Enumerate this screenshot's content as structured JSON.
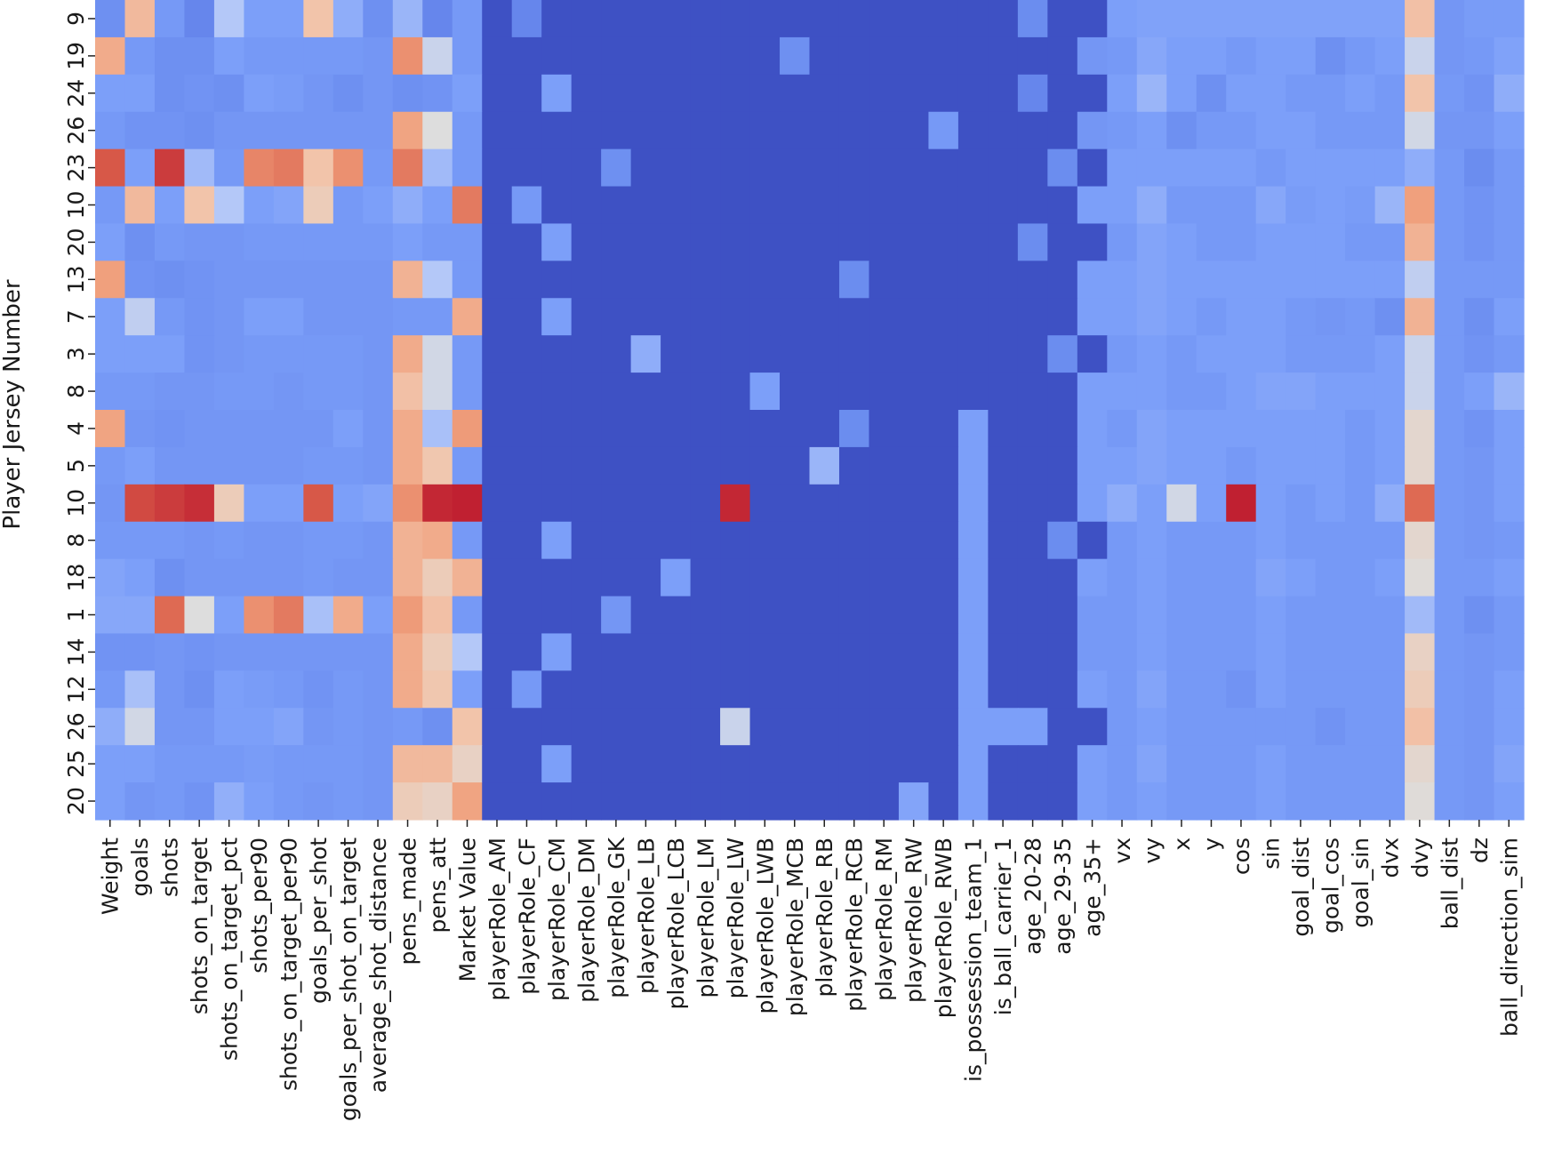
{
  "chart_data": {
    "type": "heatmap",
    "ylabel": "Player Jersey Number",
    "xlabel": "",
    "colormap": "coolwarm",
    "colors": {
      "low": "#3b4cc0",
      "mid": "#dddddd",
      "high": "#b40426"
    },
    "value_range": [
      0,
      1
    ],
    "colorbar": false,
    "grid": false,
    "columns": [
      "Weight",
      "goals",
      "shots",
      "shots_on_target",
      "shots_on_target_pct",
      "shots_per90",
      "shots_on_target_per90",
      "goals_per_shot",
      "goals_per_shot_on_target",
      "average_shot_distance",
      "pens_made",
      "pens_att",
      "Market Value",
      "playerRole_AM",
      "playerRole_CF",
      "playerRole_CM",
      "playerRole_DM",
      "playerRole_GK",
      "playerRole_LB",
      "playerRole_LCB",
      "playerRole_LM",
      "playerRole_LW",
      "playerRole_LWB",
      "playerRole_MCB",
      "playerRole_RB",
      "playerRole_RCB",
      "playerRole_RM",
      "playerRole_RW",
      "playerRole_RWB",
      "is_possession_team_1",
      "is_ball_carrier_1",
      "age_20-28",
      "age_29-35",
      "age_35+",
      "vx",
      "vy",
      "x",
      "y",
      "cos",
      "sin",
      "goal_dist",
      "goal_cos",
      "goal_sin",
      "dvx",
      "dvy",
      "ball_dist",
      "dz",
      "ball_direction_sim"
    ],
    "rows": [
      "9",
      "19",
      "24",
      "26",
      "23",
      "10",
      "20",
      "13",
      "7",
      "3",
      "8",
      "4",
      "5",
      "10",
      "8",
      "18",
      "1",
      "14",
      "12",
      "26",
      "25",
      "20"
    ],
    "values": [
      [
        0.25,
        0.68,
        0.28,
        0.22,
        0.45,
        0.3,
        0.3,
        0.65,
        0.35,
        0.25,
        0.38,
        0.22,
        0.28,
        0.02,
        0.22,
        0.02,
        0.02,
        0.02,
        0.02,
        0.02,
        0.02,
        0.02,
        0.02,
        0.02,
        0.02,
        0.02,
        0.02,
        0.02,
        0.02,
        0.02,
        0.02,
        0.24,
        0.02,
        0.02,
        0.3,
        0.31,
        0.31,
        0.31,
        0.31,
        0.31,
        0.31,
        0.31,
        0.31,
        0.31,
        0.66,
        0.27,
        0.29,
        0.29
      ],
      [
        0.72,
        0.28,
        0.25,
        0.25,
        0.3,
        0.28,
        0.28,
        0.28,
        0.28,
        0.27,
        0.78,
        0.5,
        0.28,
        0.02,
        0.02,
        0.02,
        0.02,
        0.02,
        0.02,
        0.02,
        0.02,
        0.02,
        0.02,
        0.25,
        0.02,
        0.02,
        0.02,
        0.02,
        0.02,
        0.02,
        0.02,
        0.02,
        0.02,
        0.27,
        0.28,
        0.33,
        0.3,
        0.3,
        0.28,
        0.3,
        0.3,
        0.25,
        0.28,
        0.3,
        0.5,
        0.27,
        0.28,
        0.31
      ],
      [
        0.3,
        0.3,
        0.25,
        0.26,
        0.25,
        0.3,
        0.29,
        0.27,
        0.25,
        0.27,
        0.25,
        0.26,
        0.3,
        0.02,
        0.02,
        0.3,
        0.02,
        0.02,
        0.02,
        0.02,
        0.02,
        0.02,
        0.02,
        0.02,
        0.02,
        0.02,
        0.02,
        0.02,
        0.02,
        0.02,
        0.02,
        0.22,
        0.02,
        0.02,
        0.3,
        0.38,
        0.3,
        0.25,
        0.3,
        0.3,
        0.28,
        0.28,
        0.3,
        0.28,
        0.65,
        0.28,
        0.26,
        0.35
      ],
      [
        0.28,
        0.26,
        0.26,
        0.25,
        0.27,
        0.27,
        0.27,
        0.27,
        0.27,
        0.27,
        0.74,
        0.55,
        0.28,
        0.02,
        0.02,
        0.02,
        0.02,
        0.02,
        0.02,
        0.02,
        0.02,
        0.02,
        0.02,
        0.02,
        0.02,
        0.02,
        0.02,
        0.02,
        0.28,
        0.02,
        0.02,
        0.02,
        0.02,
        0.27,
        0.28,
        0.3,
        0.25,
        0.28,
        0.28,
        0.3,
        0.3,
        0.28,
        0.28,
        0.28,
        0.52,
        0.27,
        0.27,
        0.3
      ],
      [
        0.88,
        0.3,
        0.92,
        0.4,
        0.28,
        0.8,
        0.82,
        0.65,
        0.78,
        0.28,
        0.82,
        0.4,
        0.28,
        0.02,
        0.02,
        0.02,
        0.02,
        0.25,
        0.02,
        0.02,
        0.02,
        0.02,
        0.02,
        0.02,
        0.02,
        0.02,
        0.02,
        0.02,
        0.02,
        0.02,
        0.02,
        0.02,
        0.24,
        0.02,
        0.3,
        0.3,
        0.3,
        0.3,
        0.3,
        0.28,
        0.3,
        0.3,
        0.3,
        0.3,
        0.35,
        0.28,
        0.24,
        0.28
      ],
      [
        0.28,
        0.68,
        0.3,
        0.65,
        0.45,
        0.3,
        0.32,
        0.62,
        0.28,
        0.3,
        0.35,
        0.3,
        0.82,
        0.02,
        0.28,
        0.02,
        0.02,
        0.02,
        0.02,
        0.02,
        0.02,
        0.02,
        0.02,
        0.02,
        0.02,
        0.02,
        0.02,
        0.02,
        0.02,
        0.02,
        0.02,
        0.02,
        0.02,
        0.3,
        0.3,
        0.35,
        0.28,
        0.28,
        0.28,
        0.33,
        0.29,
        0.3,
        0.29,
        0.38,
        0.75,
        0.28,
        0.26,
        0.28
      ],
      [
        0.3,
        0.25,
        0.28,
        0.27,
        0.27,
        0.28,
        0.28,
        0.28,
        0.28,
        0.28,
        0.3,
        0.28,
        0.28,
        0.02,
        0.02,
        0.3,
        0.02,
        0.02,
        0.02,
        0.02,
        0.02,
        0.02,
        0.02,
        0.02,
        0.02,
        0.02,
        0.02,
        0.02,
        0.02,
        0.02,
        0.02,
        0.24,
        0.02,
        0.02,
        0.28,
        0.32,
        0.3,
        0.28,
        0.28,
        0.3,
        0.3,
        0.3,
        0.28,
        0.28,
        0.7,
        0.28,
        0.26,
        0.28
      ],
      [
        0.75,
        0.26,
        0.25,
        0.26,
        0.27,
        0.27,
        0.27,
        0.27,
        0.27,
        0.27,
        0.7,
        0.45,
        0.28,
        0.02,
        0.02,
        0.02,
        0.02,
        0.02,
        0.02,
        0.02,
        0.02,
        0.02,
        0.02,
        0.02,
        0.02,
        0.24,
        0.02,
        0.02,
        0.02,
        0.02,
        0.02,
        0.02,
        0.02,
        0.3,
        0.3,
        0.32,
        0.3,
        0.3,
        0.3,
        0.3,
        0.3,
        0.3,
        0.3,
        0.3,
        0.48,
        0.28,
        0.28,
        0.28
      ],
      [
        0.3,
        0.48,
        0.28,
        0.26,
        0.27,
        0.3,
        0.3,
        0.27,
        0.27,
        0.27,
        0.28,
        0.28,
        0.72,
        0.02,
        0.02,
        0.3,
        0.02,
        0.02,
        0.02,
        0.02,
        0.02,
        0.02,
        0.02,
        0.02,
        0.02,
        0.02,
        0.02,
        0.02,
        0.02,
        0.02,
        0.02,
        0.02,
        0.02,
        0.3,
        0.3,
        0.32,
        0.3,
        0.28,
        0.3,
        0.3,
        0.28,
        0.27,
        0.28,
        0.25,
        0.7,
        0.28,
        0.25,
        0.3
      ],
      [
        0.3,
        0.3,
        0.3,
        0.26,
        0.27,
        0.28,
        0.28,
        0.28,
        0.28,
        0.27,
        0.72,
        0.52,
        0.28,
        0.02,
        0.02,
        0.02,
        0.02,
        0.02,
        0.35,
        0.02,
        0.02,
        0.02,
        0.02,
        0.02,
        0.02,
        0.02,
        0.02,
        0.02,
        0.02,
        0.02,
        0.02,
        0.02,
        0.24,
        0.02,
        0.28,
        0.3,
        0.28,
        0.3,
        0.3,
        0.3,
        0.28,
        0.28,
        0.28,
        0.3,
        0.5,
        0.28,
        0.26,
        0.28
      ],
      [
        0.28,
        0.28,
        0.27,
        0.27,
        0.28,
        0.28,
        0.27,
        0.28,
        0.28,
        0.27,
        0.66,
        0.52,
        0.28,
        0.02,
        0.02,
        0.02,
        0.02,
        0.02,
        0.02,
        0.02,
        0.02,
        0.02,
        0.3,
        0.02,
        0.02,
        0.02,
        0.02,
        0.02,
        0.02,
        0.02,
        0.02,
        0.02,
        0.02,
        0.3,
        0.3,
        0.3,
        0.28,
        0.28,
        0.3,
        0.32,
        0.32,
        0.3,
        0.3,
        0.3,
        0.5,
        0.28,
        0.3,
        0.38
      ],
      [
        0.74,
        0.27,
        0.26,
        0.27,
        0.27,
        0.27,
        0.27,
        0.27,
        0.3,
        0.27,
        0.72,
        0.42,
        0.76,
        0.02,
        0.02,
        0.02,
        0.02,
        0.02,
        0.02,
        0.02,
        0.02,
        0.02,
        0.02,
        0.02,
        0.02,
        0.24,
        0.02,
        0.02,
        0.02,
        0.3,
        0.02,
        0.02,
        0.02,
        0.3,
        0.28,
        0.32,
        0.3,
        0.3,
        0.3,
        0.3,
        0.3,
        0.3,
        0.28,
        0.3,
        0.58,
        0.28,
        0.26,
        0.3
      ],
      [
        0.28,
        0.3,
        0.27,
        0.27,
        0.27,
        0.27,
        0.27,
        0.28,
        0.28,
        0.27,
        0.72,
        0.64,
        0.28,
        0.02,
        0.02,
        0.02,
        0.02,
        0.02,
        0.02,
        0.02,
        0.02,
        0.02,
        0.02,
        0.02,
        0.38,
        0.02,
        0.02,
        0.02,
        0.02,
        0.3,
        0.02,
        0.02,
        0.02,
        0.3,
        0.3,
        0.32,
        0.3,
        0.3,
        0.28,
        0.3,
        0.3,
        0.3,
        0.28,
        0.3,
        0.58,
        0.28,
        0.27,
        0.3
      ],
      [
        0.27,
        0.9,
        0.92,
        0.94,
        0.62,
        0.3,
        0.3,
        0.88,
        0.3,
        0.32,
        0.78,
        0.95,
        0.96,
        0.02,
        0.02,
        0.02,
        0.02,
        0.02,
        0.02,
        0.02,
        0.02,
        0.95,
        0.02,
        0.02,
        0.02,
        0.02,
        0.02,
        0.02,
        0.02,
        0.3,
        0.02,
        0.02,
        0.02,
        0.3,
        0.35,
        0.3,
        0.52,
        0.3,
        0.96,
        0.3,
        0.28,
        0.3,
        0.28,
        0.35,
        0.85,
        0.28,
        0.27,
        0.3
      ],
      [
        0.28,
        0.28,
        0.28,
        0.27,
        0.28,
        0.27,
        0.27,
        0.28,
        0.28,
        0.27,
        0.7,
        0.72,
        0.28,
        0.02,
        0.02,
        0.3,
        0.02,
        0.02,
        0.02,
        0.02,
        0.02,
        0.02,
        0.02,
        0.02,
        0.02,
        0.02,
        0.02,
        0.02,
        0.02,
        0.3,
        0.02,
        0.02,
        0.24,
        0.02,
        0.28,
        0.3,
        0.28,
        0.28,
        0.28,
        0.3,
        0.28,
        0.28,
        0.28,
        0.28,
        0.58,
        0.28,
        0.27,
        0.28
      ],
      [
        0.32,
        0.3,
        0.25,
        0.27,
        0.27,
        0.27,
        0.27,
        0.28,
        0.27,
        0.27,
        0.7,
        0.62,
        0.7,
        0.02,
        0.02,
        0.02,
        0.02,
        0.02,
        0.02,
        0.3,
        0.02,
        0.02,
        0.02,
        0.02,
        0.02,
        0.02,
        0.02,
        0.02,
        0.02,
        0.3,
        0.02,
        0.02,
        0.02,
        0.3,
        0.28,
        0.3,
        0.28,
        0.28,
        0.28,
        0.32,
        0.3,
        0.28,
        0.28,
        0.3,
        0.56,
        0.28,
        0.28,
        0.3
      ],
      [
        0.33,
        0.33,
        0.85,
        0.55,
        0.3,
        0.78,
        0.82,
        0.42,
        0.72,
        0.3,
        0.76,
        0.66,
        0.28,
        0.02,
        0.02,
        0.02,
        0.02,
        0.27,
        0.02,
        0.02,
        0.02,
        0.02,
        0.02,
        0.02,
        0.02,
        0.02,
        0.02,
        0.02,
        0.02,
        0.3,
        0.02,
        0.02,
        0.02,
        0.28,
        0.28,
        0.3,
        0.28,
        0.28,
        0.28,
        0.3,
        0.28,
        0.28,
        0.28,
        0.28,
        0.4,
        0.28,
        0.25,
        0.28
      ],
      [
        0.26,
        0.26,
        0.27,
        0.26,
        0.27,
        0.27,
        0.27,
        0.27,
        0.27,
        0.27,
        0.72,
        0.62,
        0.45,
        0.02,
        0.02,
        0.3,
        0.02,
        0.02,
        0.02,
        0.02,
        0.02,
        0.02,
        0.02,
        0.02,
        0.02,
        0.02,
        0.02,
        0.02,
        0.02,
        0.3,
        0.02,
        0.02,
        0.02,
        0.28,
        0.28,
        0.3,
        0.28,
        0.28,
        0.28,
        0.3,
        0.28,
        0.28,
        0.28,
        0.28,
        0.6,
        0.28,
        0.27,
        0.28
      ],
      [
        0.28,
        0.42,
        0.27,
        0.25,
        0.3,
        0.29,
        0.28,
        0.26,
        0.28,
        0.27,
        0.72,
        0.64,
        0.3,
        0.02,
        0.28,
        0.02,
        0.02,
        0.02,
        0.02,
        0.02,
        0.02,
        0.02,
        0.02,
        0.02,
        0.02,
        0.02,
        0.02,
        0.02,
        0.02,
        0.3,
        0.02,
        0.02,
        0.02,
        0.3,
        0.28,
        0.32,
        0.28,
        0.28,
        0.26,
        0.3,
        0.28,
        0.28,
        0.28,
        0.28,
        0.62,
        0.28,
        0.27,
        0.3
      ],
      [
        0.35,
        0.52,
        0.27,
        0.27,
        0.3,
        0.3,
        0.32,
        0.27,
        0.28,
        0.27,
        0.28,
        0.25,
        0.65,
        0.02,
        0.02,
        0.02,
        0.02,
        0.02,
        0.02,
        0.02,
        0.02,
        0.5,
        0.02,
        0.02,
        0.02,
        0.02,
        0.02,
        0.02,
        0.02,
        0.3,
        0.3,
        0.3,
        0.02,
        0.02,
        0.28,
        0.3,
        0.28,
        0.28,
        0.28,
        0.28,
        0.28,
        0.26,
        0.28,
        0.28,
        0.66,
        0.28,
        0.27,
        0.3
      ],
      [
        0.3,
        0.3,
        0.28,
        0.28,
        0.28,
        0.29,
        0.28,
        0.28,
        0.28,
        0.27,
        0.68,
        0.68,
        0.6,
        0.02,
        0.02,
        0.3,
        0.02,
        0.02,
        0.02,
        0.02,
        0.02,
        0.02,
        0.02,
        0.02,
        0.02,
        0.02,
        0.02,
        0.02,
        0.02,
        0.3,
        0.02,
        0.02,
        0.02,
        0.3,
        0.28,
        0.32,
        0.28,
        0.28,
        0.28,
        0.3,
        0.28,
        0.28,
        0.28,
        0.28,
        0.58,
        0.28,
        0.27,
        0.32
      ],
      [
        0.3,
        0.27,
        0.28,
        0.26,
        0.36,
        0.3,
        0.28,
        0.27,
        0.28,
        0.27,
        0.62,
        0.6,
        0.74,
        0.02,
        0.02,
        0.02,
        0.02,
        0.02,
        0.02,
        0.02,
        0.02,
        0.02,
        0.02,
        0.02,
        0.02,
        0.02,
        0.02,
        0.32,
        0.02,
        0.3,
        0.02,
        0.02,
        0.02,
        0.3,
        0.28,
        0.3,
        0.28,
        0.28,
        0.28,
        0.3,
        0.28,
        0.28,
        0.28,
        0.28,
        0.56,
        0.28,
        0.27,
        0.3
      ]
    ]
  }
}
